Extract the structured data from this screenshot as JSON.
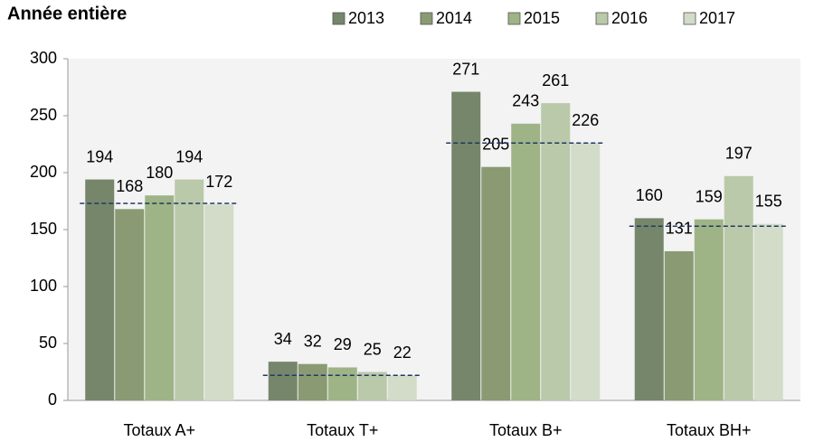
{
  "chart_data": {
    "type": "bar",
    "title": "Année entière",
    "categories": [
      "Totaux A+",
      "Totaux T+",
      "Totaux B+",
      "Totaux BH+"
    ],
    "series": [
      {
        "name": "2013",
        "color": "#76866a",
        "values": [
          194,
          34,
          271,
          160
        ]
      },
      {
        "name": "2014",
        "color": "#8a9a73",
        "values": [
          168,
          32,
          205,
          131
        ]
      },
      {
        "name": "2015",
        "color": "#9fb486",
        "values": [
          180,
          29,
          243,
          159
        ]
      },
      {
        "name": "2016",
        "color": "#bac9a9",
        "values": [
          194,
          25,
          261,
          197
        ]
      },
      {
        "name": "2017",
        "color": "#d2dcc8",
        "values": [
          172,
          22,
          226,
          155
        ]
      }
    ],
    "reference_lines": {
      "color": "#1f3864",
      "values": [
        173,
        22,
        226,
        153
      ]
    },
    "ylim": [
      0,
      300
    ],
    "yticks": [
      0,
      50,
      100,
      150,
      200,
      250,
      300
    ],
    "grid": false,
    "legend": "top"
  }
}
